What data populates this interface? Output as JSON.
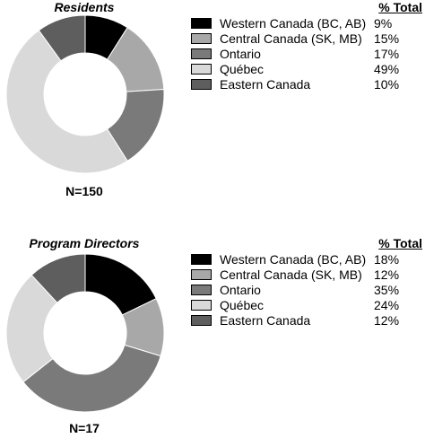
{
  "chart_data": [
    {
      "type": "pie",
      "title": "Residents",
      "n_label": "N=150",
      "legend_header": "% Total",
      "categories": [
        "Western Canada (BC, AB)",
        "Central Canada (SK, MB)",
        "Ontario",
        "Québec",
        "Eastern Canada"
      ],
      "values": [
        9,
        15,
        17,
        49,
        10
      ],
      "value_labels": [
        "9%",
        "15%",
        "17%",
        "49%",
        "10%"
      ],
      "colors": [
        "#000000",
        "#a8a8a8",
        "#7a7a7a",
        "#d9d9d9",
        "#5e5e5e"
      ],
      "legend_placement": "right"
    },
    {
      "type": "pie",
      "title": "Program Directors",
      "n_label": "N=17",
      "legend_header": "% Total",
      "categories": [
        "Western Canada (BC, AB)",
        "Central Canada (SK, MB)",
        "Ontario",
        "Québec",
        "Eastern Canada"
      ],
      "values": [
        18,
        12,
        35,
        24,
        12
      ],
      "value_labels": [
        "18%",
        "12%",
        "35%",
        "24%",
        "12%"
      ],
      "colors": [
        "#000000",
        "#a8a8a8",
        "#7a7a7a",
        "#d9d9d9",
        "#5e5e5e"
      ],
      "legend_placement": "right"
    }
  ]
}
